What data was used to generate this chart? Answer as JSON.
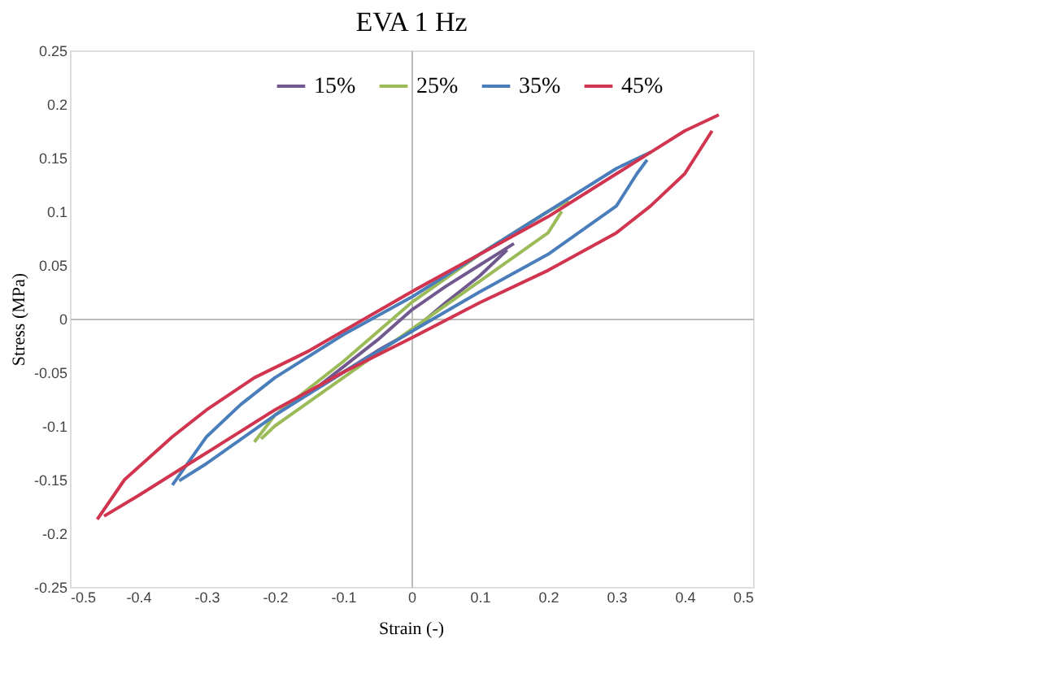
{
  "chart_data": {
    "type": "line",
    "title": "EVA 1 Hz",
    "xlabel": "Strain (-)",
    "ylabel": "Stress (MPa)",
    "xlim": [
      -0.5,
      0.5
    ],
    "xticks": [
      -0.5,
      -0.4,
      -0.3,
      -0.2,
      -0.1,
      0,
      0.1,
      0.2,
      0.3,
      0.4,
      0.5
    ],
    "ylim": [
      -0.25,
      0.25
    ],
    "yticks": [
      -0.25,
      -0.2,
      -0.15,
      -0.1,
      -0.05,
      0,
      0.05,
      0.1,
      0.15,
      0.2,
      0.25
    ],
    "legend": "top",
    "line_style": "solid",
    "marker": "none",
    "series": [
      {
        "name": "15%",
        "color": "#71588f",
        "x": [
          -0.15,
          -0.1,
          -0.05,
          0,
          0.05,
          0.1,
          0.15
        ],
        "values": [
          -0.07,
          -0.045,
          -0.02,
          0.008,
          0.03,
          0.05,
          0.07
        ]
      },
      {
        "color": "#71588f",
        "x": [
          -0.14,
          -0.1,
          -0.05,
          0,
          0.05,
          0.1,
          0.14
        ],
        "values": [
          -0.066,
          -0.05,
          -0.03,
          -0.012,
          0.015,
          0.04,
          0.064
        ]
      },
      {
        "name": "25%",
        "color": "#9bbb59",
        "x": [
          -0.23,
          -0.2,
          -0.1,
          0,
          0.1,
          0.2,
          0.23
        ],
        "values": [
          -0.115,
          -0.09,
          -0.04,
          0.015,
          0.06,
          0.1,
          0.11
        ]
      },
      {
        "color": "#9bbb59",
        "x": [
          -0.22,
          -0.2,
          -0.1,
          0,
          0.1,
          0.2,
          0.22
        ],
        "values": [
          -0.112,
          -0.1,
          -0.055,
          -0.01,
          0.035,
          0.08,
          0.1
        ]
      },
      {
        "name": "35%",
        "color": "#4a7ebb",
        "x": [
          -0.35,
          -0.3,
          -0.25,
          -0.2,
          -0.1,
          0,
          0.1,
          0.2,
          0.3,
          0.35
        ],
        "values": [
          -0.155,
          -0.11,
          -0.08,
          -0.055,
          -0.015,
          0.02,
          0.06,
          0.1,
          0.14,
          0.155
        ]
      },
      {
        "color": "#4a7ebb",
        "x": [
          -0.34,
          -0.3,
          -0.2,
          -0.1,
          0,
          0.1,
          0.2,
          0.3,
          0.33,
          0.345
        ],
        "values": [
          -0.151,
          -0.135,
          -0.09,
          -0.05,
          -0.012,
          0.025,
          0.06,
          0.105,
          0.135,
          0.148
        ]
      },
      {
        "name": "45%",
        "color": "#d0344f",
        "x": [
          -0.46,
          -0.42,
          -0.35,
          -0.3,
          -0.23,
          -0.15,
          0,
          0.1,
          0.2,
          0.3,
          0.35,
          0.4,
          0.45
        ],
        "values": [
          -0.187,
          -0.15,
          -0.11,
          -0.085,
          -0.055,
          -0.03,
          0.025,
          0.06,
          0.095,
          0.135,
          0.155,
          0.175,
          0.19
        ]
      },
      {
        "color": "#d0344f",
        "x": [
          -0.45,
          -0.4,
          -0.3,
          -0.2,
          -0.1,
          0,
          0.1,
          0.2,
          0.3,
          0.35,
          0.4,
          0.44
        ],
        "values": [
          -0.184,
          -0.165,
          -0.125,
          -0.085,
          -0.05,
          -0.018,
          0.015,
          0.045,
          0.08,
          0.105,
          0.135,
          0.175
        ]
      }
    ]
  }
}
